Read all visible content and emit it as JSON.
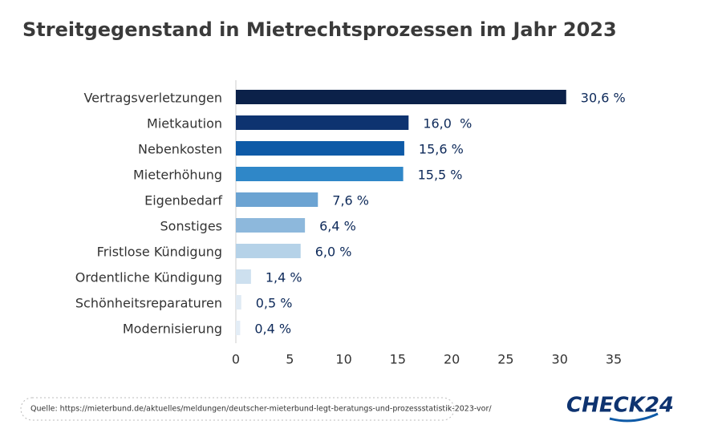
{
  "chart_data": {
    "type": "hbar",
    "title": "Streitgegenstand in Mietrechtsprozessen im Jahr 2023",
    "categories": [
      "Vertragsverletzungen",
      "Mietkaution",
      "Nebenkosten",
      "Mieterhöhung",
      "Eigenbedarf",
      "Sonstiges",
      "Fristlose Kündigung",
      "Ordentliche Kündigung",
      "Schönheitsreparaturen",
      "Modernisierung"
    ],
    "values": [
      30.6,
      16.0,
      15.6,
      15.5,
      7.6,
      6.4,
      6.0,
      1.4,
      0.5,
      0.4
    ],
    "value_labels": [
      "30,6 %",
      "16,0  %",
      "15,6 %",
      "15,5 %",
      "7,6 %",
      "6,4 %",
      "6,0 %",
      "1,4 %",
      "0,5 %",
      "0,4 %"
    ],
    "colors": [
      "#0b2149",
      "#0e3370",
      "#0e5aa7",
      "#2f87c8",
      "#6ba3d2",
      "#8db8dc",
      "#b5d2e8",
      "#cde0ef",
      "#dfeaf4",
      "#e3edf6"
    ],
    "xlim": [
      0,
      35
    ],
    "xticks": [
      0,
      5,
      10,
      15,
      20,
      25,
      30,
      35
    ]
  },
  "source": "Quelle: https://mieterbund.de/aktuelles/meldungen/deutscher-mieterbund-legt-beratungs-und-prozessstatistik-2023-vor/",
  "logo": "CHECK24"
}
